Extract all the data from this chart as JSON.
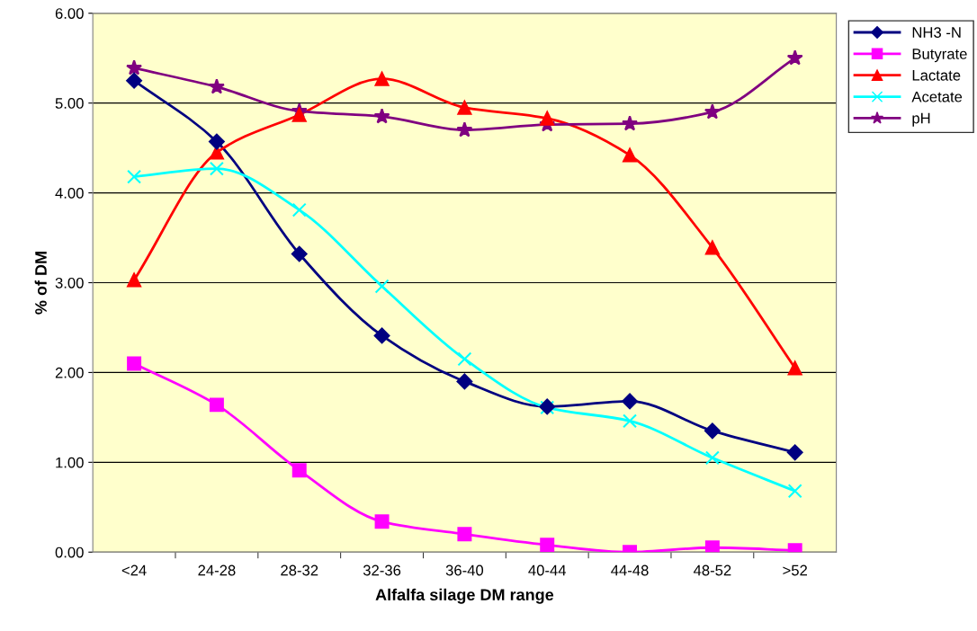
{
  "chart_data": {
    "type": "line",
    "xlabel": "Alfalfa silage DM range",
    "ylabel": "% of DM",
    "categories": [
      "<24",
      "24-28",
      "28-32",
      "32-36",
      "36-40",
      "40-44",
      "44-48",
      "48-52",
      ">52"
    ],
    "ylim": [
      0,
      6
    ],
    "yticks": [
      {
        "value": 0,
        "label": "0.00"
      },
      {
        "value": 1,
        "label": "1.00"
      },
      {
        "value": 2,
        "label": "2.00"
      },
      {
        "value": 3,
        "label": "3.00"
      },
      {
        "value": 4,
        "label": "4.00"
      },
      {
        "value": 5,
        "label": "5.00"
      },
      {
        "value": 6,
        "label": "6.00"
      }
    ],
    "grid": "y",
    "legend": "top right",
    "series": [
      {
        "name": "NH3 -N",
        "color": "#000080",
        "marker": "diamond",
        "values": [
          5.25,
          4.57,
          3.32,
          2.41,
          1.9,
          1.62,
          1.68,
          1.35,
          1.11
        ]
      },
      {
        "name": "Butyrate",
        "color": "#ff00ff",
        "marker": "square",
        "values": [
          2.1,
          1.64,
          0.91,
          0.34,
          0.2,
          0.08,
          0.0,
          0.05,
          0.02
        ]
      },
      {
        "name": "Lactate",
        "color": "#ff0000",
        "marker": "triangle",
        "values": [
          3.03,
          4.45,
          4.87,
          5.27,
          4.95,
          4.83,
          4.42,
          3.39,
          2.05
        ]
      },
      {
        "name": "Acetate",
        "color": "#00ffff",
        "marker": "cross",
        "values": [
          4.18,
          4.27,
          3.81,
          2.96,
          2.15,
          1.61,
          1.46,
          1.05,
          0.68
        ]
      },
      {
        "name": "pH",
        "color": "#800080",
        "marker": "star",
        "values": [
          5.39,
          5.18,
          4.91,
          4.85,
          4.7,
          4.76,
          4.77,
          4.9,
          5.5
        ]
      }
    ]
  }
}
